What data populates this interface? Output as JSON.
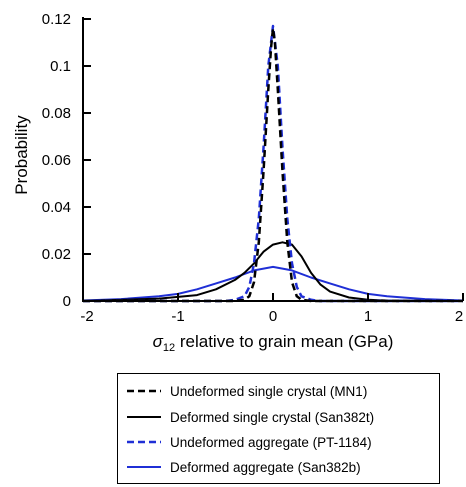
{
  "chart_data": {
    "type": "line",
    "title": "",
    "xlabel_symbol": "σ",
    "xlabel_sub": "12",
    "xlabel_rest": " relative to grain mean (GPa)",
    "ylabel": "Probability",
    "xlim": [
      -2,
      2
    ],
    "ylim": [
      0,
      0.12
    ],
    "xticks": [
      -2,
      -1,
      0,
      1,
      2
    ],
    "xtick_labels": [
      "-2",
      "-1",
      "0",
      "1",
      "2"
    ],
    "yticks": [
      0,
      0.02,
      0.04,
      0.06,
      0.08,
      0.1,
      0.12
    ],
    "ytick_labels": [
      "0",
      "0.02",
      "0.04",
      "0.06",
      "0.08",
      "0.1",
      "0.12"
    ],
    "grid": false,
    "legend_position": "below",
    "series": [
      {
        "name": "Undeformed single crystal (MN1)",
        "color": "#000000",
        "dash": "dashed",
        "x": [
          -2,
          -0.4,
          -0.3,
          -0.25,
          -0.2,
          -0.15,
          -0.1,
          -0.05,
          -0.02,
          0,
          0.02,
          0.05,
          0.1,
          0.15,
          0.2,
          0.25,
          0.3,
          0.4,
          2
        ],
        "y": [
          0,
          0,
          0.0005,
          0.002,
          0.008,
          0.025,
          0.055,
          0.09,
          0.108,
          0.116,
          0.11,
          0.09,
          0.055,
          0.025,
          0.008,
          0.002,
          0.0005,
          0,
          0
        ]
      },
      {
        "name": "Deformed single crystal (San382t)",
        "color": "#000000",
        "dash": "solid",
        "x": [
          -2,
          -1.2,
          -0.8,
          -0.6,
          -0.4,
          -0.3,
          -0.2,
          -0.1,
          0,
          0.1,
          0.2,
          0.3,
          0.4,
          0.5,
          0.6,
          0.8,
          1.0,
          1.2,
          2
        ],
        "y": [
          0,
          0.001,
          0.0025,
          0.005,
          0.009,
          0.012,
          0.016,
          0.021,
          0.024,
          0.025,
          0.024,
          0.019,
          0.012,
          0.007,
          0.004,
          0.0015,
          0.0005,
          0.0002,
          0
        ]
      },
      {
        "name": "Undeformed aggregate (PT-1184)",
        "color": "#1f2fd6",
        "dash": "dashed",
        "x": [
          -2,
          -0.5,
          -0.4,
          -0.3,
          -0.25,
          -0.2,
          -0.15,
          -0.1,
          -0.05,
          0,
          0.05,
          0.1,
          0.15,
          0.2,
          0.25,
          0.3,
          0.4,
          0.5,
          2
        ],
        "y": [
          0,
          0,
          0.0005,
          0.002,
          0.006,
          0.016,
          0.035,
          0.065,
          0.1,
          0.117,
          0.1,
          0.065,
          0.035,
          0.016,
          0.006,
          0.002,
          0.0005,
          0,
          0
        ]
      },
      {
        "name": "Deformed aggregate (San382b)",
        "color": "#1f2fd6",
        "dash": "solid",
        "x": [
          -2,
          -1.6,
          -1.2,
          -1.0,
          -0.8,
          -0.6,
          -0.4,
          -0.2,
          0,
          0.2,
          0.4,
          0.6,
          0.8,
          1.0,
          1.2,
          1.6,
          2
        ],
        "y": [
          0.0002,
          0.0008,
          0.002,
          0.003,
          0.005,
          0.0075,
          0.01,
          0.013,
          0.0145,
          0.013,
          0.01,
          0.0075,
          0.005,
          0.003,
          0.002,
          0.0008,
          0.0002
        ]
      }
    ]
  }
}
